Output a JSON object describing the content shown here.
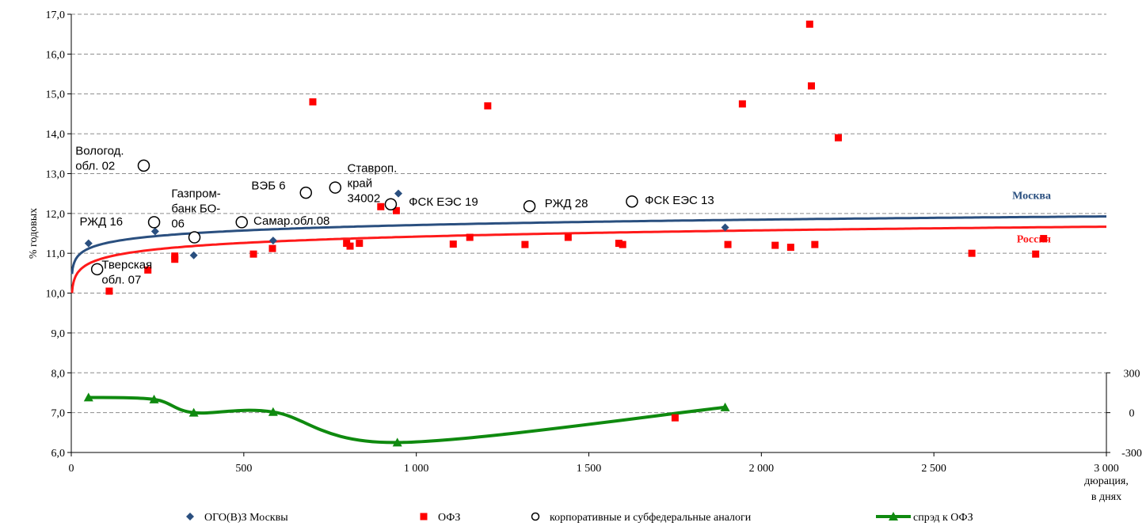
{
  "chart_data": {
    "type": "scatter",
    "ylabel": "% годовых",
    "xlabel_line1": "дюрация,",
    "xlabel_line2": "в днях",
    "xlim": [
      0,
      3000
    ],
    "ylim": [
      6,
      17
    ],
    "y2lim": [
      -300,
      300
    ],
    "grid": true,
    "x_ticks": [
      {
        "v": 0,
        "label": "0"
      },
      {
        "v": 500,
        "label": "500"
      },
      {
        "v": 1000,
        "label": "1 000"
      },
      {
        "v": 1500,
        "label": "1 500"
      },
      {
        "v": 2000,
        "label": "2 000"
      },
      {
        "v": 2500,
        "label": "2 500"
      },
      {
        "v": 3000,
        "label": "3 000"
      }
    ],
    "y_ticks": [
      {
        "v": 6,
        "label": "6,0"
      },
      {
        "v": 7,
        "label": "7,0"
      },
      {
        "v": 8,
        "label": "8,0"
      },
      {
        "v": 9,
        "label": "9,0"
      },
      {
        "v": 10,
        "label": "10,0"
      },
      {
        "v": 11,
        "label": "11,0"
      },
      {
        "v": 12,
        "label": "12,0"
      },
      {
        "v": 13,
        "label": "13,0"
      },
      {
        "v": 14,
        "label": "14,0"
      },
      {
        "v": 15,
        "label": "15,0"
      },
      {
        "v": 16,
        "label": "16,0"
      },
      {
        "v": 17,
        "label": "17,0"
      }
    ],
    "y2_ticks": [
      {
        "v": 300,
        "label": "300"
      },
      {
        "v": 0,
        "label": "0"
      },
      {
        "v": -300,
        "label": "-300"
      }
    ],
    "series": [
      {
        "name": "ОГО(В)З Москвы",
        "kind": "diamond",
        "color": "#2a4f7f",
        "points": [
          [
            50,
            11.25
          ],
          [
            243,
            11.55
          ],
          [
            355,
            10.95
          ],
          [
            585,
            11.32
          ],
          [
            948,
            12.5
          ],
          [
            1895,
            11.65
          ]
        ]
      },
      {
        "name": "ОФЗ",
        "kind": "square",
        "color": "#ff0000",
        "points": [
          [
            110,
            10.05
          ],
          [
            222,
            10.58
          ],
          [
            300,
            10.93
          ],
          [
            300,
            10.85
          ],
          [
            528,
            10.98
          ],
          [
            583,
            11.12
          ],
          [
            700,
            14.8
          ],
          [
            798,
            11.25
          ],
          [
            808,
            11.18
          ],
          [
            835,
            11.25
          ],
          [
            897,
            12.17
          ],
          [
            942,
            12.07
          ],
          [
            1207,
            14.7
          ],
          [
            1107,
            11.23
          ],
          [
            1155,
            11.4
          ],
          [
            1315,
            11.22
          ],
          [
            1440,
            11.4
          ],
          [
            1587,
            11.25
          ],
          [
            1598,
            11.22
          ],
          [
            1750,
            6.87
          ],
          [
            1903,
            11.22
          ],
          [
            1945,
            14.75
          ],
          [
            2040,
            11.2
          ],
          [
            2085,
            11.15
          ],
          [
            2140,
            16.75
          ],
          [
            2145,
            15.2
          ],
          [
            2155,
            11.22
          ],
          [
            2223,
            13.9
          ],
          [
            2610,
            11.0
          ],
          [
            2795,
            10.98
          ],
          [
            2818,
            11.37
          ]
        ]
      },
      {
        "name": "корпоративные и субфедеральные аналоги",
        "kind": "circle",
        "color": "#000000",
        "points": [
          [
            75,
            10.6
          ],
          [
            210,
            13.2
          ],
          [
            240,
            11.78
          ],
          [
            357,
            11.4
          ],
          [
            494,
            11.78
          ],
          [
            680,
            12.52
          ],
          [
            765,
            12.65
          ],
          [
            926,
            12.23
          ],
          [
            1328,
            12.18
          ],
          [
            1625,
            12.3
          ]
        ]
      },
      {
        "name": "спрэд к ОФЗ",
        "kind": "line-triangle",
        "color": "#0f8a0f",
        "axis": "right",
        "points": [
          [
            50,
            115
          ],
          [
            240,
            100
          ],
          [
            355,
            0
          ],
          [
            585,
            5
          ],
          [
            945,
            -225
          ],
          [
            1895,
            40
          ]
        ]
      }
    ],
    "curves": [
      {
        "name": "Москва",
        "color": "#2a4f7f",
        "a": 10.345,
        "b": 0.1974
      },
      {
        "name": "Россия",
        "color": "#ff1a1a",
        "a": 9.847,
        "b": 0.2274
      }
    ],
    "annotations": [
      {
        "lines": [
          "Вологод.",
          "обл. 02"
        ],
        "x": 12,
        "y": 13.48,
        "anchor": "start"
      },
      {
        "lines": [
          "РЖД 16"
        ],
        "x": 24,
        "y": 11.7,
        "anchor": "start"
      },
      {
        "lines": [
          "Тверская",
          "обл. 07"
        ],
        "x": 88,
        "y": 10.62,
        "anchor": "start"
      },
      {
        "lines": [
          "Газпром-",
          "банк БО-",
          "06"
        ],
        "x": 290,
        "y": 12.4,
        "anchor": "start"
      },
      {
        "lines": [
          "Самар.обл.08"
        ],
        "x": 528,
        "y": 11.72,
        "anchor": "start"
      },
      {
        "lines": [
          "ВЭБ 6"
        ],
        "x": 522,
        "y": 12.6,
        "anchor": "start"
      },
      {
        "lines": [
          "Ставроп.",
          "край",
          "34002"
        ],
        "x": 800,
        "y": 13.04,
        "anchor": "start"
      },
      {
        "lines": [
          "ФСК ЕЭС 19"
        ],
        "x": 978,
        "y": 12.19,
        "anchor": "start"
      },
      {
        "lines": [
          "РЖД 28"
        ],
        "x": 1372,
        "y": 12.16,
        "anchor": "start"
      },
      {
        "lines": [
          "ФСК ЕЭС 13"
        ],
        "x": 1662,
        "y": 12.23,
        "anchor": "start"
      }
    ]
  }
}
